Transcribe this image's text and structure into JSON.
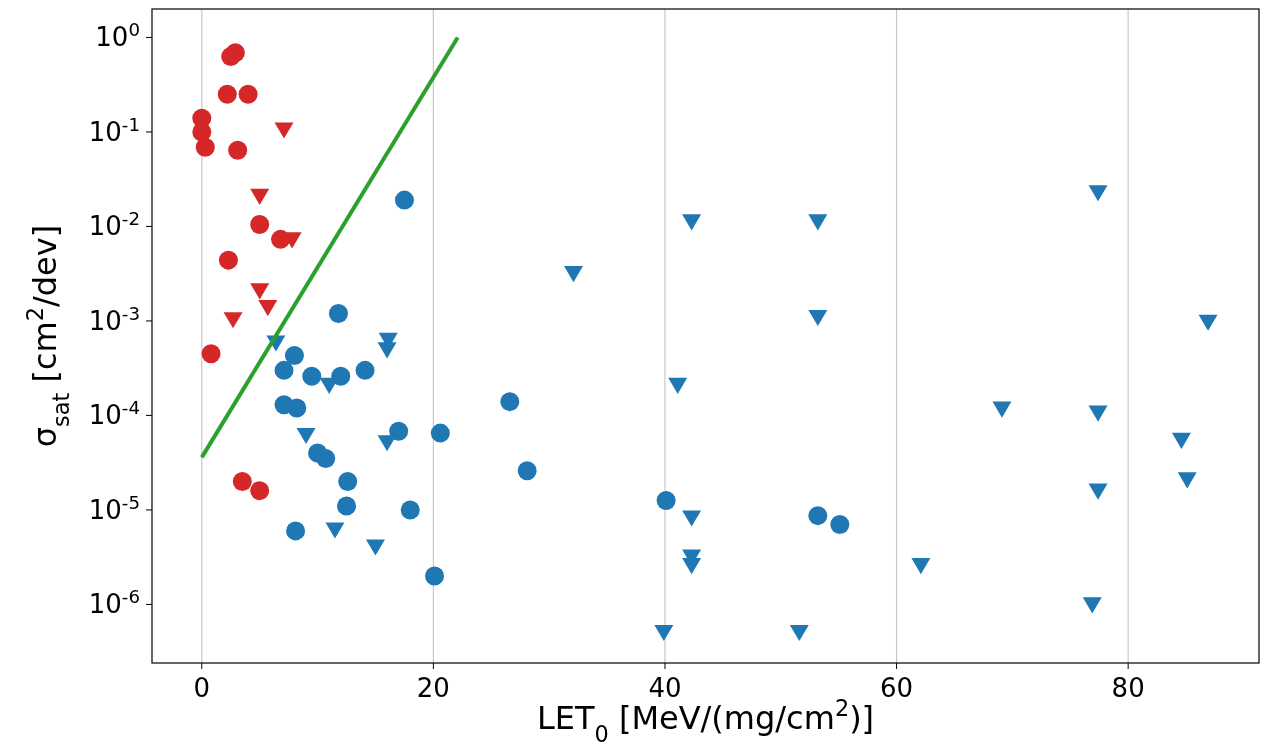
{
  "chart_data": {
    "type": "scatter",
    "xlabel": "LET$_{0}$ [MeV/(mg/cm$^{2}$)]",
    "ylabel": "σ$_{sat}$ [cm$^{2}$/dev]",
    "log": "y",
    "grid": "x",
    "xlim": [
      -4.3,
      91.3
    ],
    "xticks": [
      0,
      20,
      40,
      60,
      80
    ],
    "ylim": [
      2.4e-07,
      2
    ],
    "yticks": [
      {
        "value": 1,
        "label": "10$^{0}$"
      },
      {
        "value": 0.1,
        "label": "10$^{-1}$"
      },
      {
        "value": 0.01,
        "label": "10$^{-2}$"
      },
      {
        "value": 0.001,
        "label": "10$^{-3}$"
      },
      {
        "value": 0.0001,
        "label": "10$^{-4}$"
      },
      {
        "value": 1e-05,
        "label": "10$^{-5}$"
      },
      {
        "value": 1e-06,
        "label": "10$^{-6}$"
      }
    ],
    "series": [
      {
        "marker": "circle",
        "color": "#d62728",
        "x": [
          0,
          0,
          0.3,
          2.2,
          2.5,
          2.9,
          4.0,
          3.1,
          5.0,
          6.8,
          2.3,
          0.8,
          3.5,
          5.0
        ],
        "values": [
          0.14,
          0.1,
          0.069,
          0.25,
          0.63,
          0.69,
          0.25,
          0.064,
          0.0105,
          0.0073,
          0.0044,
          0.00045,
          2e-05,
          1.6e-05
        ]
      },
      {
        "marker": "triangle",
        "color": "#d62728",
        "x": [
          7.1,
          5.0,
          7.8,
          5.0,
          5.7,
          2.7
        ],
        "values": [
          0.106,
          0.021,
          0.0073,
          0.0021,
          0.0014,
          0.00104
        ]
      },
      {
        "marker": "circle",
        "color": "#1f77b4",
        "x": [
          17.5,
          11.8,
          8.0,
          7.1,
          9.5,
          12.0,
          14.1,
          7.1,
          8.2,
          26.6,
          17.0,
          20.6,
          10.0,
          10.7,
          28.1,
          12.6,
          12.5,
          18.0,
          8.1,
          20.1,
          40.1,
          53.2,
          55.1
        ],
        "values": [
          0.019,
          0.0012,
          0.00043,
          0.0003,
          0.00026,
          0.00026,
          0.0003,
          0.00013,
          0.00012,
          0.00014,
          6.8e-05,
          6.5e-05,
          4e-05,
          3.5e-05,
          2.6e-05,
          2e-05,
          1.1e-05,
          1e-05,
          6e-06,
          2e-06,
          1.26e-05,
          8.7e-06,
          7e-06
        ]
      },
      {
        "marker": "triangle",
        "color": "#1f77b4",
        "x": [
          6.4,
          16.1,
          16.0,
          11.0,
          9.0,
          16.0,
          11.5,
          15.0,
          32.1,
          42.3,
          53.2,
          53.2,
          41.1,
          42.3,
          42.3,
          42.3,
          39.9,
          51.6,
          62.1,
          69.1,
          77.4,
          77.4,
          77.4,
          76.9,
          84.6,
          85.1,
          86.9
        ],
        "values": [
          0.00059,
          0.00063,
          0.0005,
          0.00021,
          6.2e-05,
          5.2e-05,
          6.2e-06,
          4.1e-06,
          0.0032,
          0.0113,
          0.0113,
          0.0011,
          0.00021,
          8.3e-06,
          3.2e-06,
          2.6e-06,
          5.1e-07,
          5.1e-07,
          2.6e-06,
          0.000118,
          0.023,
          0.000107,
          1.6e-05,
          1e-06,
          5.5e-05,
          2.1e-05,
          0.00098
        ]
      },
      {
        "type": "line",
        "color": "#2ca02c",
        "x": [
          0,
          22.1
        ],
        "values": [
          3.6e-05,
          1.0
        ]
      }
    ]
  }
}
